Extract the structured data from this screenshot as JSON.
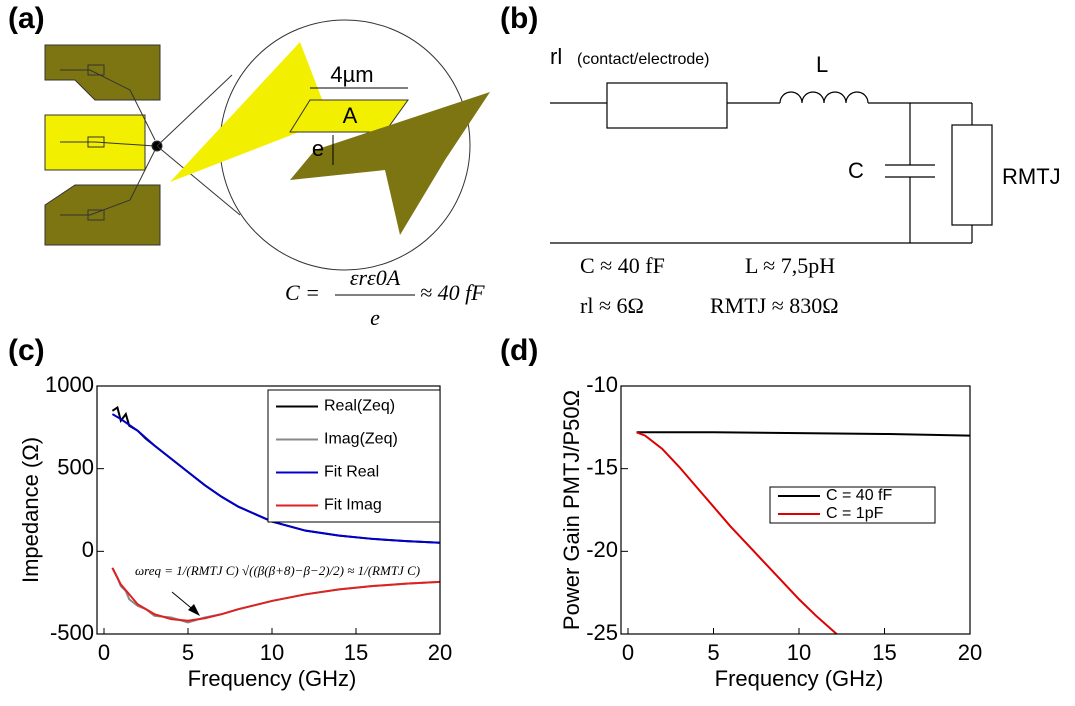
{
  "panel_labels": [
    "(a)",
    "(b)",
    "(c)",
    "(d)"
  ],
  "diagram_a": {
    "dimension": "4µm",
    "area": "A",
    "gap": "e",
    "formula": {
      "lhs": "C =",
      "numerator": "εrε0A",
      "denominator": "e",
      "rhs": "≈ 40 fF"
    }
  },
  "circuit_b": {
    "contact": "rl",
    "contact_note": "(contact/electrode)",
    "inductor": "L",
    "capacitor": "C",
    "resistor": "RMTJ",
    "values": [
      "C ≈ 40 fF",
      "L ≈ 7,5pH",
      "rl ≈ 6Ω",
      "RMTJ ≈ 830Ω"
    ]
  },
  "chart_data": [
    {
      "type": "line",
      "xlabel": "Frequency (GHz)",
      "ylabel": "Impedance (Ω)",
      "xlim": [
        0,
        20
      ],
      "ylim": [
        -500,
        1000
      ],
      "xticks": [
        0,
        5,
        10,
        15,
        20
      ],
      "yticks": [
        -500,
        0,
        500,
        1000
      ],
      "annotation": "ωreq = 1/(RMTJ C) √((β(β+8)−β−2)/2) ≈ 1/(RMTJ C)",
      "series": [
        {
          "name": "Real(Zeq)",
          "color": "#000000",
          "x": [
            0.5,
            0.8,
            1,
            1.3,
            1.5,
            2,
            2.5,
            3,
            4,
            5,
            6,
            7,
            8,
            10,
            12,
            14,
            16,
            18,
            20
          ],
          "values": [
            850,
            870,
            790,
            830,
            760,
            730,
            680,
            640,
            560,
            480,
            400,
            330,
            270,
            180,
            125,
            95,
            75,
            62,
            52
          ]
        },
        {
          "name": "Imag(Zeq)",
          "color": "#888888",
          "x": [
            0.5,
            0.8,
            1,
            1.3,
            1.5,
            2,
            2.5,
            3,
            4,
            5,
            6,
            7,
            8,
            10,
            12,
            14,
            16,
            18,
            20
          ],
          "values": [
            -100,
            -160,
            -210,
            -240,
            -290,
            -330,
            -350,
            -390,
            -400,
            -430,
            -400,
            -380,
            -350,
            -300,
            -260,
            -230,
            -210,
            -195,
            -185
          ]
        },
        {
          "name": "Fit Real",
          "color": "#0000cc",
          "x": [
            0.5,
            1,
            2,
            3,
            4,
            5,
            6,
            7,
            8,
            10,
            12,
            14,
            16,
            18,
            20
          ],
          "values": [
            830,
            800,
            730,
            640,
            560,
            480,
            400,
            330,
            270,
            180,
            125,
            95,
            75,
            62,
            52
          ]
        },
        {
          "name": "Fit Imag",
          "color": "#dd2222",
          "x": [
            0.5,
            1,
            2,
            3,
            4,
            5,
            6,
            7,
            8,
            10,
            12,
            14,
            16,
            18,
            20
          ],
          "values": [
            -100,
            -200,
            -320,
            -380,
            -410,
            -420,
            -405,
            -380,
            -350,
            -300,
            -260,
            -230,
            -210,
            -195,
            -185
          ]
        }
      ]
    },
    {
      "type": "line",
      "xlabel": "Frequency (GHz)",
      "ylabel": "Power Gain PMTJ/P50Ω",
      "xlim": [
        0,
        20
      ],
      "ylim": [
        -25,
        -10
      ],
      "xticks": [
        0,
        5,
        10,
        15,
        20
      ],
      "yticks": [
        -25,
        -20,
        -15,
        -10
      ],
      "series": [
        {
          "name": "C = 40 fF",
          "color": "#000000",
          "x": [
            0.5,
            5,
            10,
            15,
            20
          ],
          "values": [
            -12.8,
            -12.8,
            -12.85,
            -12.9,
            -13.0
          ]
        },
        {
          "name": "C = 1pF",
          "color": "#dd0000",
          "x": [
            0.5,
            1,
            2,
            3,
            4,
            5,
            6,
            7,
            8,
            9,
            10,
            11,
            12.2
          ],
          "values": [
            -12.8,
            -13.0,
            -13.8,
            -14.9,
            -16.1,
            -17.3,
            -18.5,
            -19.6,
            -20.7,
            -21.8,
            -22.9,
            -23.9,
            -25
          ]
        }
      ]
    }
  ]
}
